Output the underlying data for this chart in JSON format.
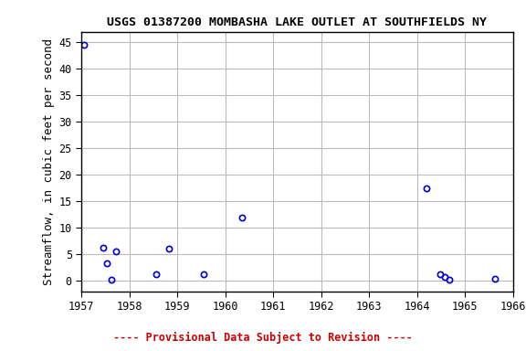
{
  "title": "USGS 01387200 MOMBASHA LAKE OUTLET AT SOUTHFIELDS NY",
  "ylabel": "Streamflow, in cubic feet per second",
  "xlim": [
    1957,
    1966
  ],
  "ylim": [
    -2,
    47
  ],
  "yticks": [
    0,
    5,
    10,
    15,
    20,
    25,
    30,
    35,
    40,
    45
  ],
  "xticks": [
    1957,
    1958,
    1959,
    1960,
    1961,
    1962,
    1963,
    1964,
    1965,
    1966
  ],
  "x_data": [
    1957.05,
    1957.45,
    1957.52,
    1957.62,
    1957.72,
    1958.55,
    1958.82,
    1959.55,
    1960.35,
    1964.2,
    1964.48,
    1964.58,
    1964.68,
    1965.62
  ],
  "y_data": [
    44.5,
    6.3,
    3.3,
    0.2,
    5.5,
    1.2,
    6.0,
    1.2,
    12.0,
    17.5,
    1.2,
    0.7,
    0.2,
    0.3
  ],
  "marker_color": "#0000CC",
  "marker_facecolor": "none",
  "marker_size": 4.5,
  "marker_style": "o",
  "marker_linewidth": 1.2,
  "grid_color": "#bbbbbb",
  "bg_color": "#ffffff",
  "title_fontsize": 9.5,
  "axis_label_fontsize": 9,
  "tick_fontsize": 8.5,
  "footer_text": "---- Provisional Data Subject to Revision ----",
  "footer_color": "#cc0000",
  "footer_fontsize": 8.5
}
